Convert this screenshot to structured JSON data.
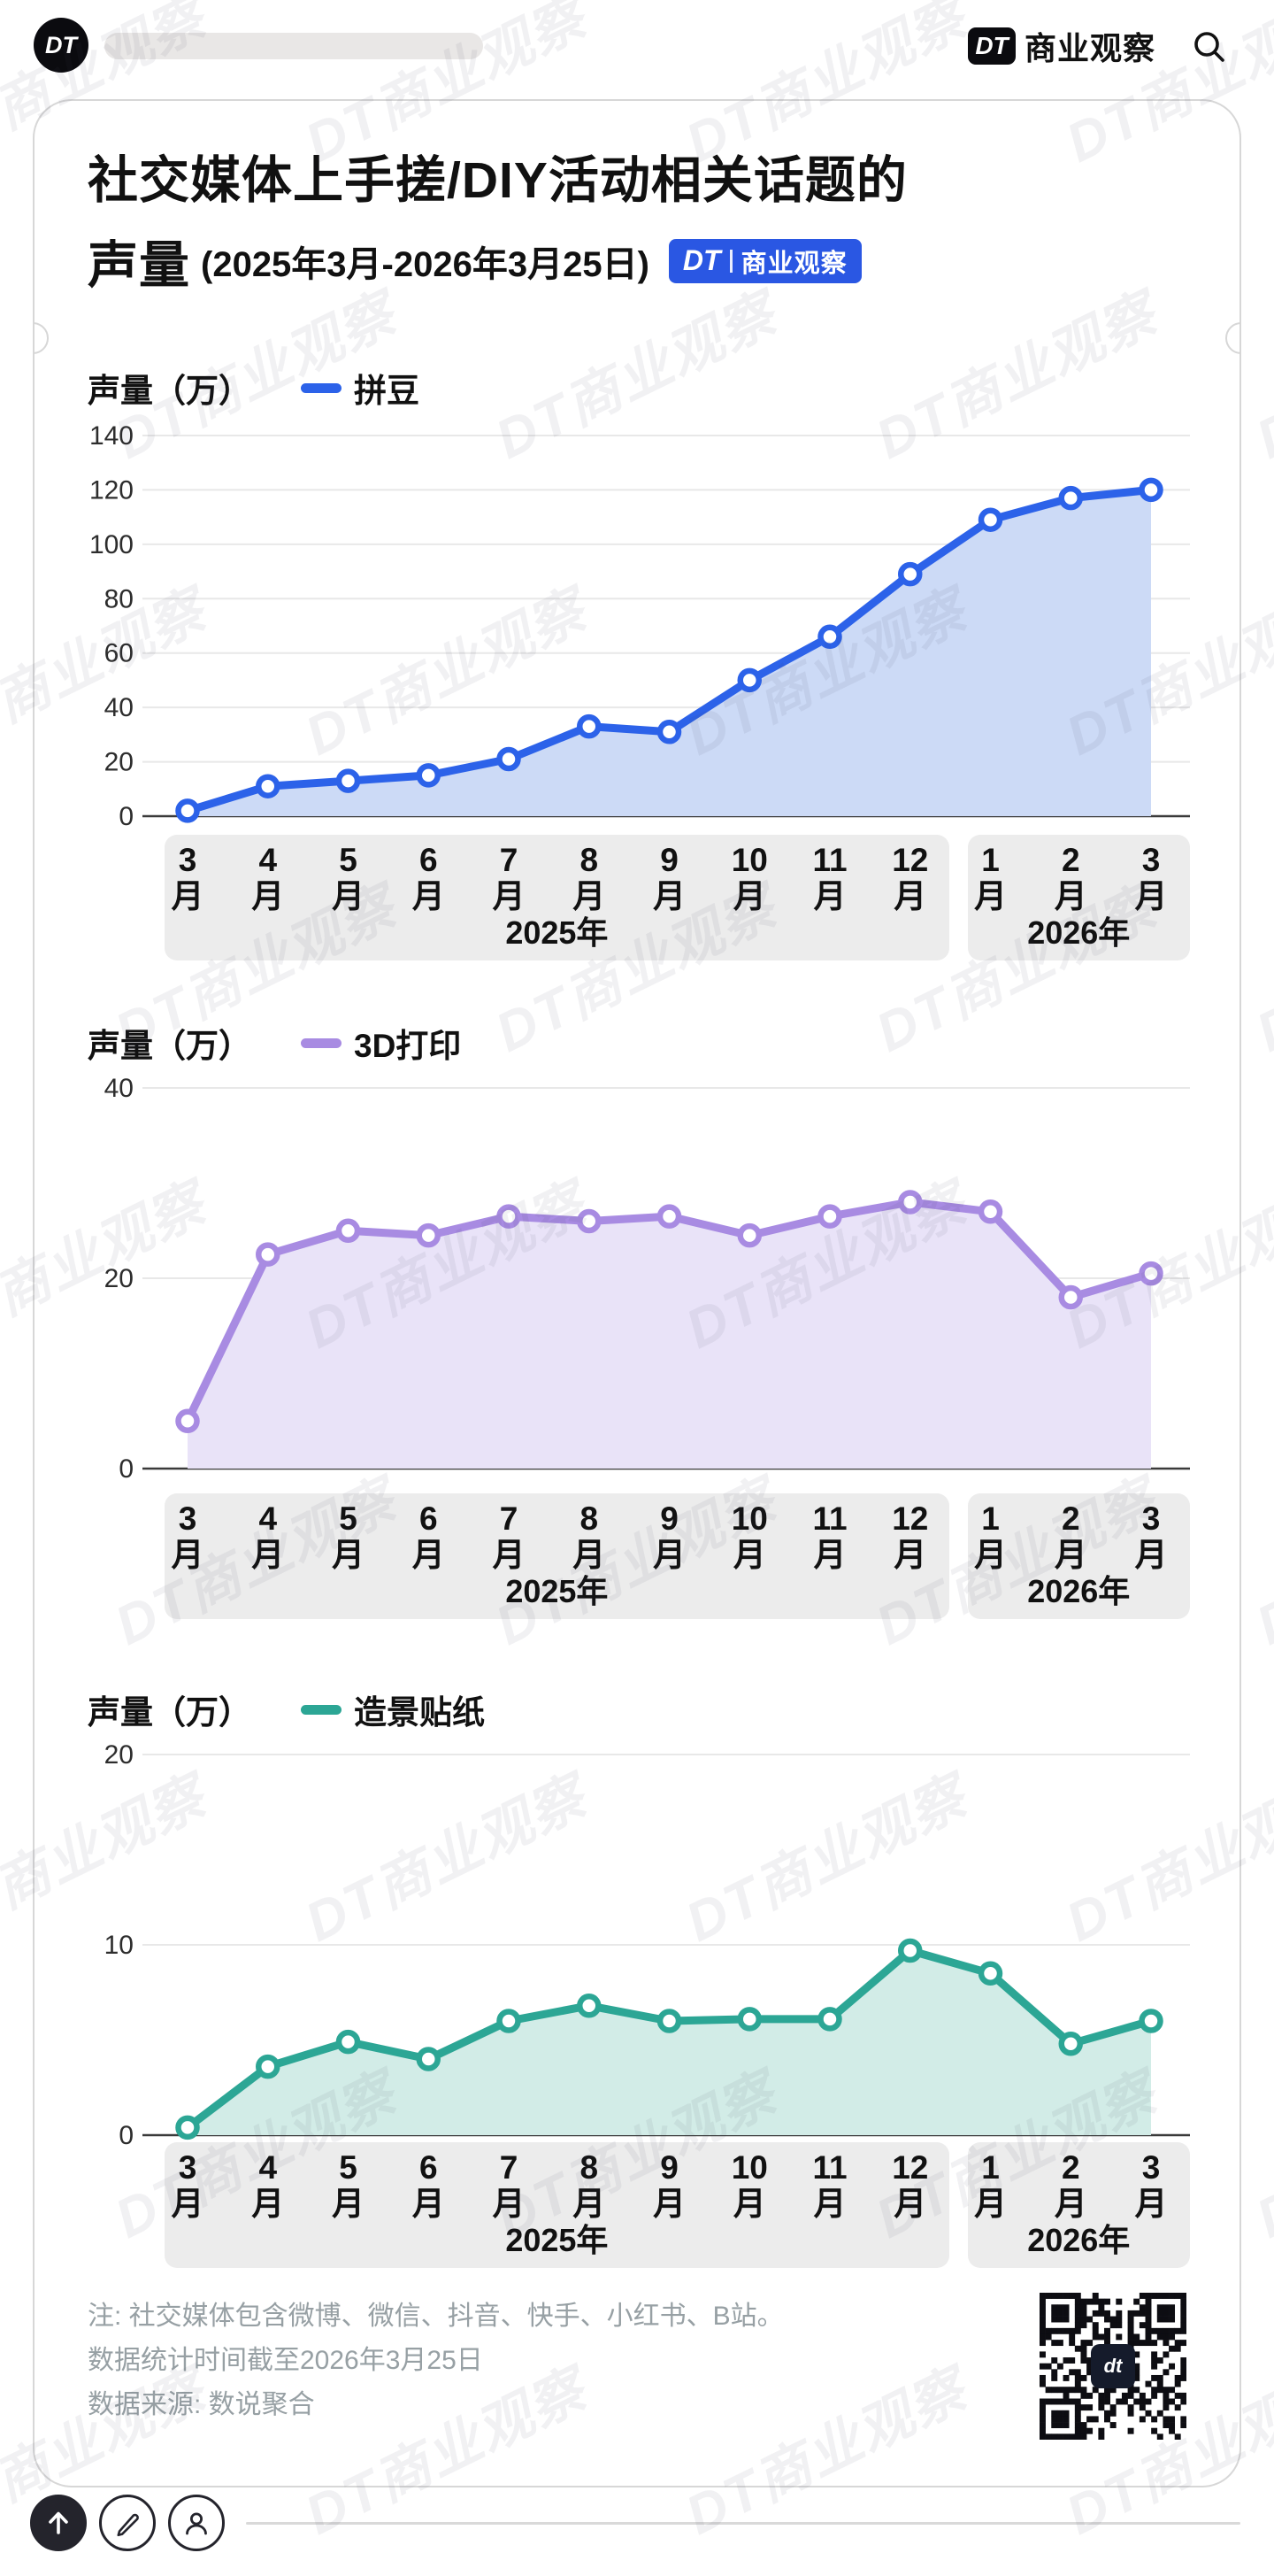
{
  "topbar": {
    "logo_text": "DT",
    "brand": {
      "dt": "DT",
      "name": "商业观察"
    }
  },
  "title": {
    "line1": "社交媒体上手搓/DIY活动相关话题的",
    "line2": "声量",
    "date_range": "(2025年3月-2026年3月25日)",
    "badge": {
      "dt": "DT",
      "name": "商业观察"
    }
  },
  "watermark_text": "DT商业观察",
  "chart_data": [
    {
      "type": "area",
      "ylabel": "声量（万）",
      "name": "拼豆",
      "line_color": "#2c62e9",
      "fill_color": "#ccdaf6",
      "categories": [
        "3月",
        "4月",
        "5月",
        "6月",
        "7月",
        "8月",
        "9月",
        "10月",
        "11月",
        "12月",
        "1月",
        "2月",
        "3月"
      ],
      "values": [
        2,
        11,
        13,
        15,
        21,
        33,
        31,
        50,
        66,
        89,
        109,
        117,
        120
      ],
      "ylim": [
        0,
        140
      ],
      "yticks": [
        0,
        20,
        40,
        60,
        80,
        100,
        120,
        140
      ],
      "year_groups": [
        {
          "label": "2025年",
          "from": 0,
          "to": 9
        },
        {
          "label": "2026年",
          "from": 10,
          "to": 12
        }
      ]
    },
    {
      "type": "area",
      "ylabel": "声量（万）",
      "name": "3D打印",
      "line_color": "#a88be2",
      "fill_color": "#e9e3f8",
      "categories": [
        "3月",
        "4月",
        "5月",
        "6月",
        "7月",
        "8月",
        "9月",
        "10月",
        "11月",
        "12月",
        "1月",
        "2月",
        "3月"
      ],
      "values": [
        5,
        22.5,
        25,
        24.5,
        26.5,
        26,
        26.5,
        24.5,
        26.5,
        28,
        27,
        18,
        20.5
      ],
      "ylim": [
        0,
        40
      ],
      "yticks": [
        0,
        20,
        40
      ],
      "year_groups": [
        {
          "label": "2025年",
          "from": 0,
          "to": 9
        },
        {
          "label": "2026年",
          "from": 10,
          "to": 12
        }
      ]
    },
    {
      "type": "area",
      "ylabel": "声量（万）",
      "name": "造景贴纸",
      "line_color": "#2ca695",
      "fill_color": "#d2ece7",
      "categories": [
        "3月",
        "4月",
        "5月",
        "6月",
        "7月",
        "8月",
        "9月",
        "10月",
        "11月",
        "12月",
        "1月",
        "2月",
        "3月"
      ],
      "values": [
        0.4,
        3.6,
        4.9,
        4,
        6,
        6.8,
        6,
        6.1,
        6.1,
        9.7,
        8.5,
        4.8,
        6
      ],
      "ylim": [
        0,
        20
      ],
      "yticks": [
        0,
        10,
        20
      ],
      "year_groups": [
        {
          "label": "2025年",
          "from": 0,
          "to": 9
        },
        {
          "label": "2026年",
          "from": 10,
          "to": 12
        }
      ]
    }
  ],
  "footer": {
    "notes": [
      "注: 社交媒体包含微博、微信、抖音、快手、小红书、B站。",
      "数据统计时间截至2026年3月25日",
      "数据来源: 数说聚合"
    ],
    "qr_label": "dt"
  }
}
